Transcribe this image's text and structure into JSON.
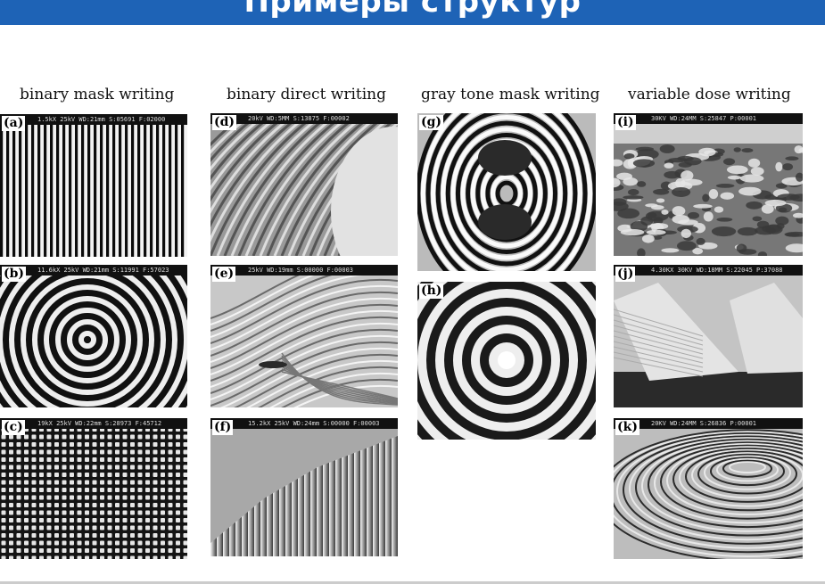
{
  "title": "Примеры структур",
  "columns": [
    {
      "heading": "binary mask writing"
    },
    {
      "heading": "binary direct writing"
    },
    {
      "heading": "gray tone mask writing"
    },
    {
      "heading": "variable dose writing"
    }
  ],
  "panels": {
    "a": {
      "label": "(a)",
      "info": "1.5kX  25kV WD:21mm  S:05691 F:02000"
    },
    "b": {
      "label": "(b)",
      "info": "11.6kX  25kV WD:21mm  S:11991 F:57023"
    },
    "c": {
      "label": "(c)",
      "info": "19kX  25kV WD:22mm  S:28973 F:45712"
    },
    "d": {
      "label": "(d)",
      "info": "20kV WD:5MM  S:13875 F:00002"
    },
    "e": {
      "label": "(e)",
      "info": "25kV WD:19mm  S:00000 F:00003"
    },
    "f": {
      "label": "(f)",
      "info": "15.2kX  25kV WD:24mm  S:00000 F:00003"
    },
    "g": {
      "label": "(g)",
      "info": ""
    },
    "h": {
      "label": "(h)",
      "info": ""
    },
    "i": {
      "label": "(i)",
      "info": "30KV WD:24MM  S:25847 P:00001"
    },
    "j": {
      "label": "(j)",
      "info": "4.30KX  30KV WD:18MM  S:22045 P:37088"
    },
    "k": {
      "label": "(k)",
      "info": "20KV WD:24MM  S:26836 P:00001"
    }
  }
}
